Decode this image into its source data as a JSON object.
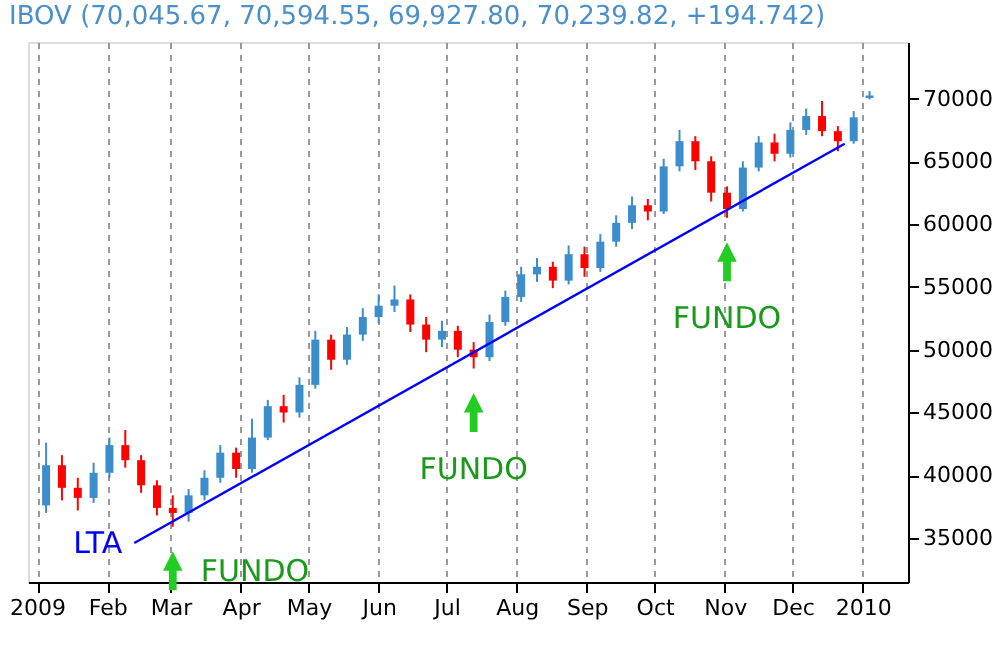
{
  "chart_data": {
    "type": "candlestick",
    "title": "IBOV (70,045.67, 70,594.55, 69,927.80, 70,239.82, +194.742)",
    "x": [
      "2009-01-05",
      "2009-01-12",
      "2009-01-19",
      "2009-01-26",
      "2009-02-02",
      "2009-02-09",
      "2009-02-16",
      "2009-02-23",
      "2009-03-02",
      "2009-03-09",
      "2009-03-16",
      "2009-03-23",
      "2009-03-30",
      "2009-04-06",
      "2009-04-13",
      "2009-04-20",
      "2009-04-27",
      "2009-05-04",
      "2009-05-11",
      "2009-05-18",
      "2009-05-25",
      "2009-06-01",
      "2009-06-08",
      "2009-06-15",
      "2009-06-22",
      "2009-06-29",
      "2009-07-06",
      "2009-07-13",
      "2009-07-20",
      "2009-07-27",
      "2009-08-03",
      "2009-08-10",
      "2009-08-17",
      "2009-08-24",
      "2009-08-31",
      "2009-09-07",
      "2009-09-14",
      "2009-09-21",
      "2009-09-28",
      "2009-10-05",
      "2009-10-12",
      "2009-10-19",
      "2009-10-26",
      "2009-11-02",
      "2009-11-09",
      "2009-11-16",
      "2009-11-23",
      "2009-11-30",
      "2009-12-07",
      "2009-12-14",
      "2009-12-21",
      "2009-12-28",
      "2010-01-04"
    ],
    "ohlc": [
      [
        37600,
        42600,
        37000,
        40800
      ],
      [
        40800,
        41600,
        38000,
        39000
      ],
      [
        39000,
        39800,
        37200,
        38200
      ],
      [
        38200,
        41000,
        37800,
        40200
      ],
      [
        40200,
        43000,
        39800,
        42400
      ],
      [
        42400,
        43600,
        40600,
        41200
      ],
      [
        41200,
        41600,
        38600,
        39200
      ],
      [
        39200,
        39600,
        36800,
        37400
      ],
      [
        37400,
        38400,
        35900,
        37000
      ],
      [
        37000,
        38900,
        36300,
        38400
      ],
      [
        38400,
        40400,
        38000,
        39800
      ],
      [
        39800,
        42400,
        39400,
        41800
      ],
      [
        41800,
        42200,
        39800,
        40500
      ],
      [
        40500,
        44500,
        40200,
        43000
      ],
      [
        43000,
        46000,
        42800,
        45500
      ],
      [
        45500,
        46400,
        44200,
        45000
      ],
      [
        45000,
        47800,
        44600,
        47200
      ],
      [
        47200,
        51500,
        46900,
        50800
      ],
      [
        50800,
        51200,
        48400,
        49200
      ],
      [
        49200,
        51800,
        48800,
        51200
      ],
      [
        51200,
        53300,
        50700,
        52600
      ],
      [
        52600,
        54400,
        52100,
        53500
      ],
      [
        53500,
        55100,
        53000,
        54000
      ],
      [
        54000,
        54400,
        51400,
        52000
      ],
      [
        52000,
        52600,
        49800,
        50800
      ],
      [
        50800,
        52300,
        50200,
        51500
      ],
      [
        51500,
        51900,
        49400,
        50000
      ],
      [
        50000,
        50600,
        48500,
        49400
      ],
      [
        49400,
        52800,
        49100,
        52200
      ],
      [
        52200,
        54700,
        51900,
        54200
      ],
      [
        54200,
        56600,
        53800,
        56000
      ],
      [
        56000,
        57300,
        55400,
        56600
      ],
      [
        56600,
        57000,
        54900,
        55500
      ],
      [
        55500,
        58300,
        55200,
        57600
      ],
      [
        57600,
        58200,
        55800,
        56500
      ],
      [
        56500,
        59200,
        56200,
        58600
      ],
      [
        58600,
        60700,
        58200,
        60100
      ],
      [
        60100,
        62200,
        59600,
        61500
      ],
      [
        61500,
        62000,
        60300,
        61000
      ],
      [
        61000,
        65200,
        60800,
        64600
      ],
      [
        64600,
        67500,
        64200,
        66600
      ],
      [
        66600,
        67000,
        64300,
        65000
      ],
      [
        65000,
        65400,
        61800,
        62500
      ],
      [
        62500,
        63000,
        60500,
        61200
      ],
      [
        61200,
        65000,
        61000,
        64500
      ],
      [
        64500,
        67000,
        64200,
        66500
      ],
      [
        66500,
        67200,
        65000,
        65600
      ],
      [
        65600,
        68100,
        65300,
        67500
      ],
      [
        67500,
        69200,
        67100,
        68600
      ],
      [
        68600,
        69800,
        67000,
        67400
      ],
      [
        67400,
        67800,
        65800,
        66600
      ],
      [
        66600,
        69000,
        66400,
        68500
      ],
      [
        70045.67,
        70594.55,
        69927.8,
        70239.82
      ]
    ],
    "colors": [
      "#3c8dcb",
      "#ff0000",
      "#ff0000",
      "#3c8dcb",
      "#3c8dcb",
      "#ff0000",
      "#ff0000",
      "#ff0000",
      "#ff0000",
      "#3c8dcb",
      "#3c8dcb",
      "#3c8dcb",
      "#ff0000",
      "#3c8dcb",
      "#3c8dcb",
      "#ff0000",
      "#3c8dcb",
      "#3c8dcb",
      "#ff0000",
      "#3c8dcb",
      "#3c8dcb",
      "#3c8dcb",
      "#3c8dcb",
      "#ff0000",
      "#ff0000",
      "#3c8dcb",
      "#ff0000",
      "#ff0000",
      "#3c8dcb",
      "#3c8dcb",
      "#3c8dcb",
      "#3c8dcb",
      "#ff0000",
      "#3c8dcb",
      "#ff0000",
      "#3c8dcb",
      "#3c8dcb",
      "#3c8dcb",
      "#ff0000",
      "#3c8dcb",
      "#3c8dcb",
      "#ff0000",
      "#ff0000",
      "#ff0000",
      "#3c8dcb",
      "#3c8dcb",
      "#ff0000",
      "#3c8dcb",
      "#3c8dcb",
      "#ff0000",
      "#ff0000",
      "#3c8dcb",
      "#3c8dcb"
    ],
    "series": [
      {
        "name": "LTA",
        "type": "line",
        "color": "#0000ff",
        "x": [
          "2009-02-13",
          "2009-12-24"
        ],
        "values": [
          34600,
          66400
        ]
      }
    ],
    "annotations": [
      {
        "text": "FUNDO",
        "x": "2009-03-02",
        "y": 35900
      },
      {
        "text": "FUNDO",
        "x": "2009-07-13",
        "y": 48500
      },
      {
        "text": "FUNDO",
        "x": "2009-11-02",
        "y": 60500
      }
    ],
    "xlim": [
      "2008-12-28",
      "2010-01-21"
    ],
    "xticks": [
      {
        "value": "2009-01-01",
        "label": "2009"
      },
      {
        "value": "2009-02-01",
        "label": "Feb"
      },
      {
        "value": "2009-03-01",
        "label": "Mar"
      },
      {
        "value": "2009-04-01",
        "label": "Apr"
      },
      {
        "value": "2009-05-01",
        "label": "May"
      },
      {
        "value": "2009-06-01",
        "label": "Jun"
      },
      {
        "value": "2009-07-01",
        "label": "Jul"
      },
      {
        "value": "2009-08-01",
        "label": "Aug"
      },
      {
        "value": "2009-09-01",
        "label": "Sep"
      },
      {
        "value": "2009-10-01",
        "label": "Oct"
      },
      {
        "value": "2009-11-01",
        "label": "Nov"
      },
      {
        "value": "2009-12-01",
        "label": "Dec"
      },
      {
        "value": "2010-01-01",
        "label": "2010"
      }
    ],
    "ylim": [
      31500,
      74500
    ],
    "yticks": [
      35000,
      40000,
      45000,
      50000,
      55000,
      60000,
      65000,
      70000
    ],
    "grid": "x"
  }
}
